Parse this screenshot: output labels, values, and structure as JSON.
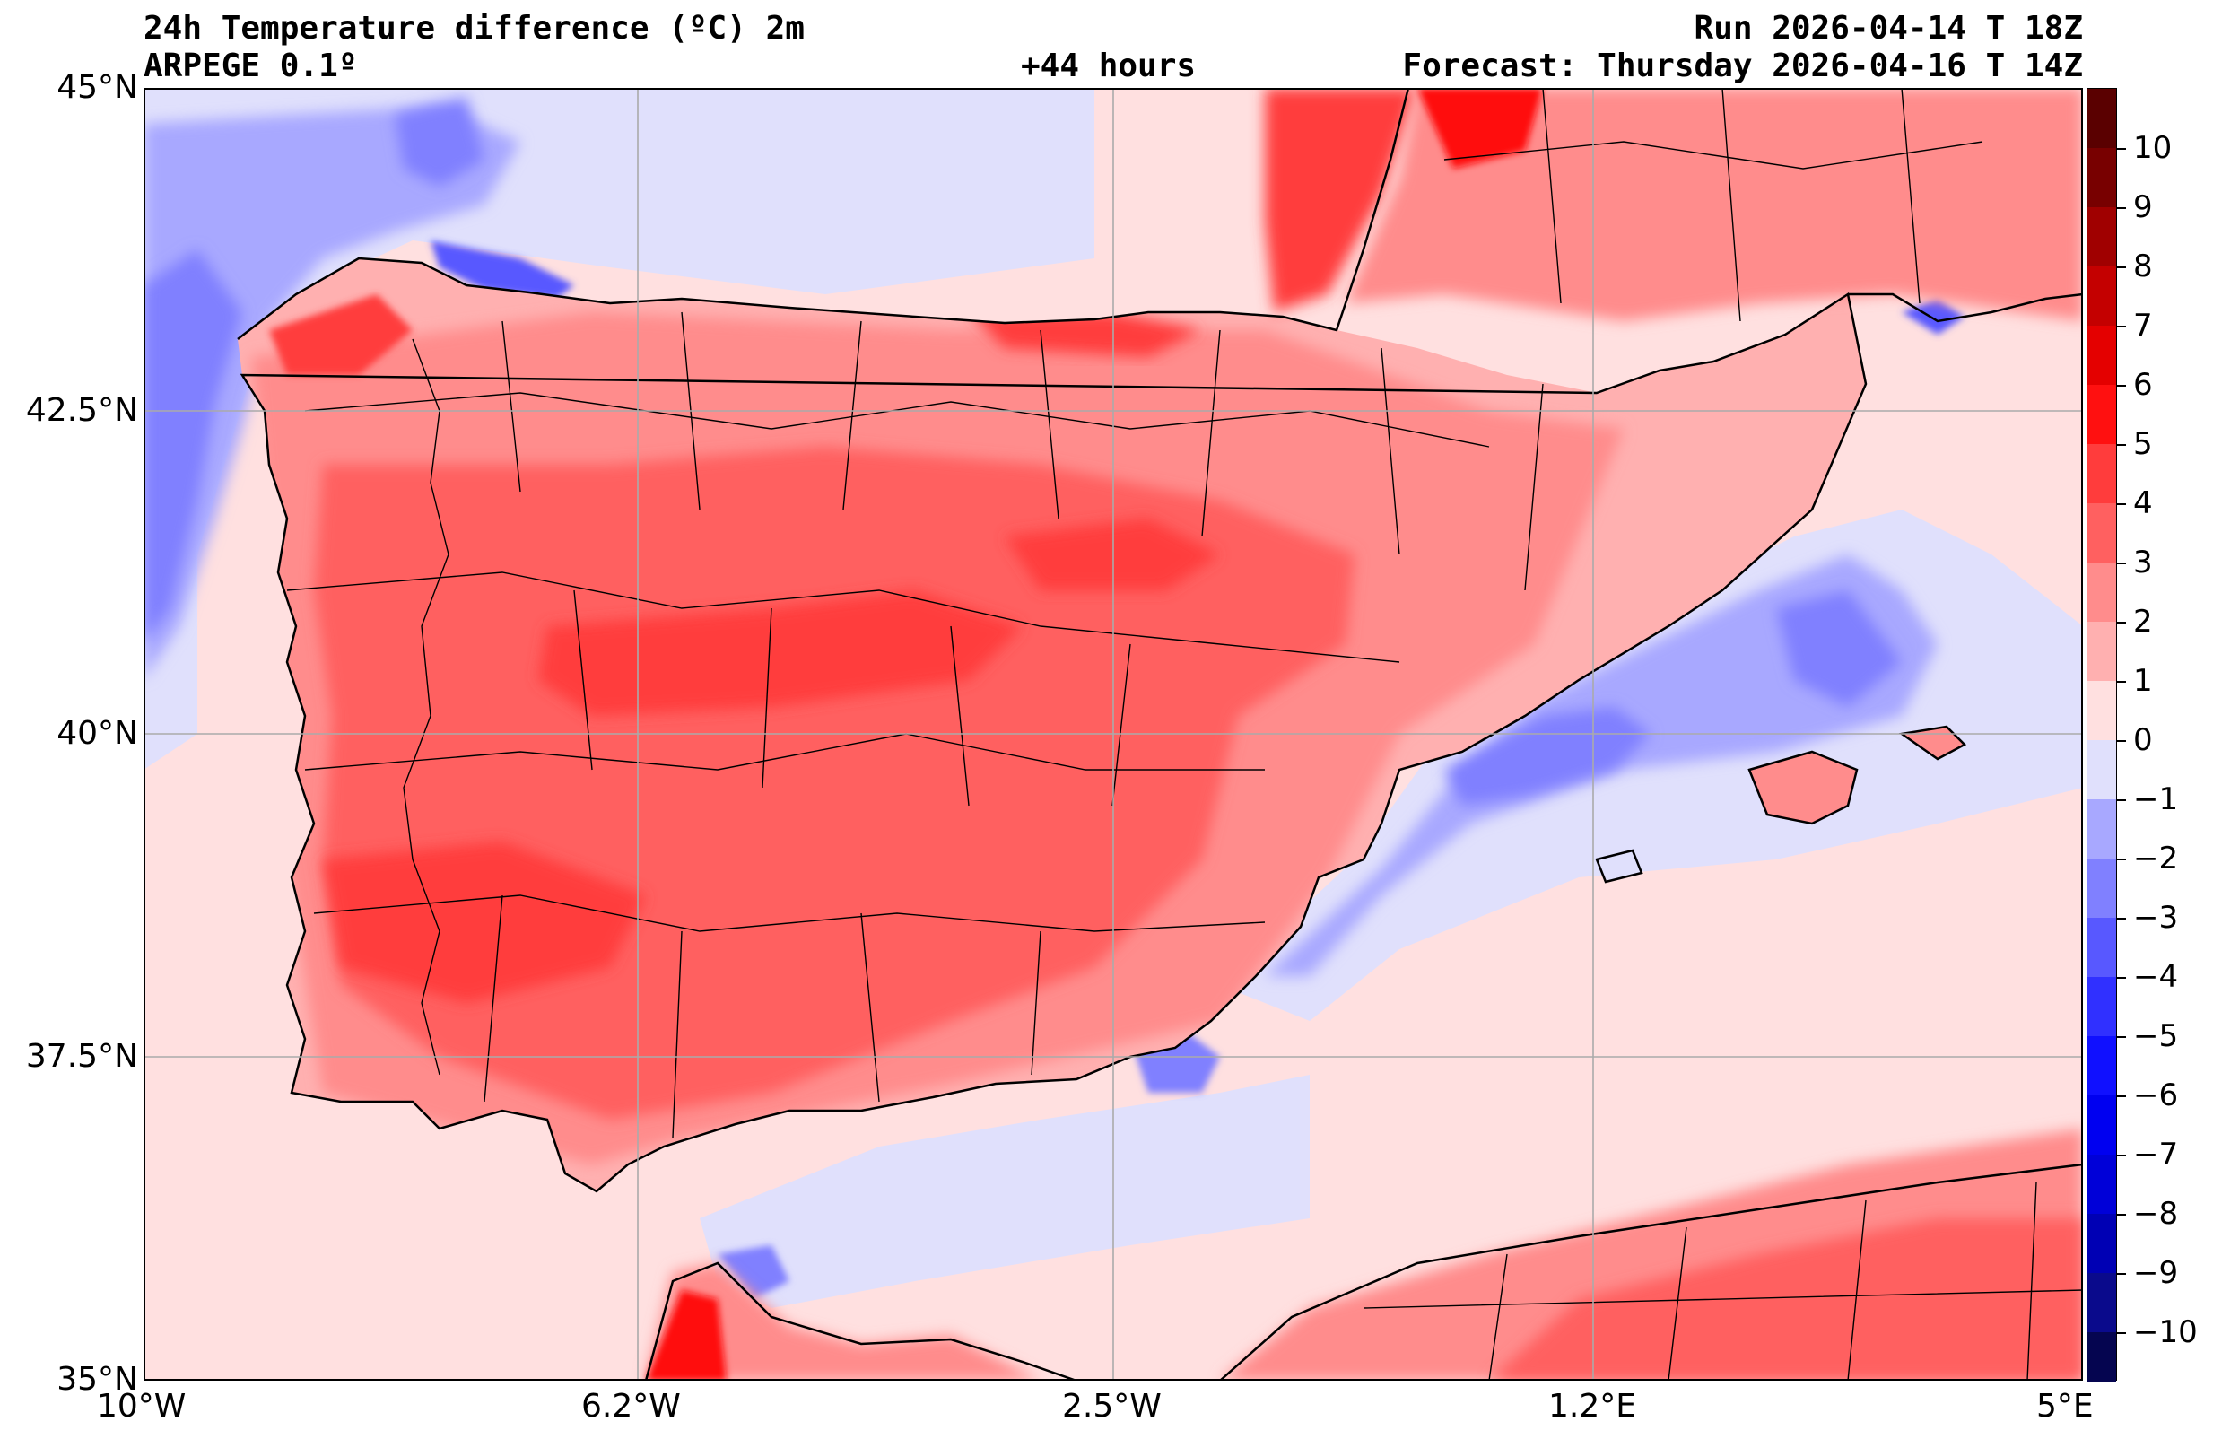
{
  "header": {
    "title": "24h Temperature difference (ºC) 2m",
    "model": "ARPEGE 0.1º",
    "lead_time": "+44 hours",
    "run": "Run 2026-04-14 T 18Z",
    "forecast": "Forecast: Thursday 2026-04-16 T 14Z"
  },
  "axes": {
    "lat_labels": [
      "45°N",
      "42.5°N",
      "40°N",
      "37.5°N",
      "35°N"
    ],
    "lon_labels": [
      "10°W",
      "6.2°W",
      "2.5°W",
      "1.2°E",
      "5°E"
    ]
  },
  "colorbar": {
    "unit": "ºC",
    "levels": [
      -10,
      -9,
      -8,
      -7,
      -6,
      -5,
      -4,
      -3,
      -2,
      -1,
      0,
      1,
      2,
      3,
      4,
      5,
      6,
      7,
      8,
      9,
      10
    ],
    "labels": [
      "10",
      "9",
      "8",
      "7",
      "6",
      "5",
      "4",
      "3",
      "2",
      "1",
      "0",
      "−1",
      "−2",
      "−3",
      "−4",
      "−5",
      "−6",
      "−7",
      "−8",
      "−9",
      "−10"
    ],
    "colors": [
      "#050550",
      "#0a0a8c",
      "#0000b4",
      "#0000d8",
      "#0000f0",
      "#1010ff",
      "#3030ff",
      "#5858ff",
      "#8080ff",
      "#a8a8ff",
      "#e0e0fc",
      "#ffe0e0",
      "#ffb0b0",
      "#ff8c8c",
      "#ff6060",
      "#ff3c3c",
      "#ff1010",
      "#e40000",
      "#c40000",
      "#a00000",
      "#780000",
      "#5a0000"
    ]
  },
  "map_colors": {
    "sea_light": "#e0e0fc",
    "land_base": "#ff8c8c"
  }
}
